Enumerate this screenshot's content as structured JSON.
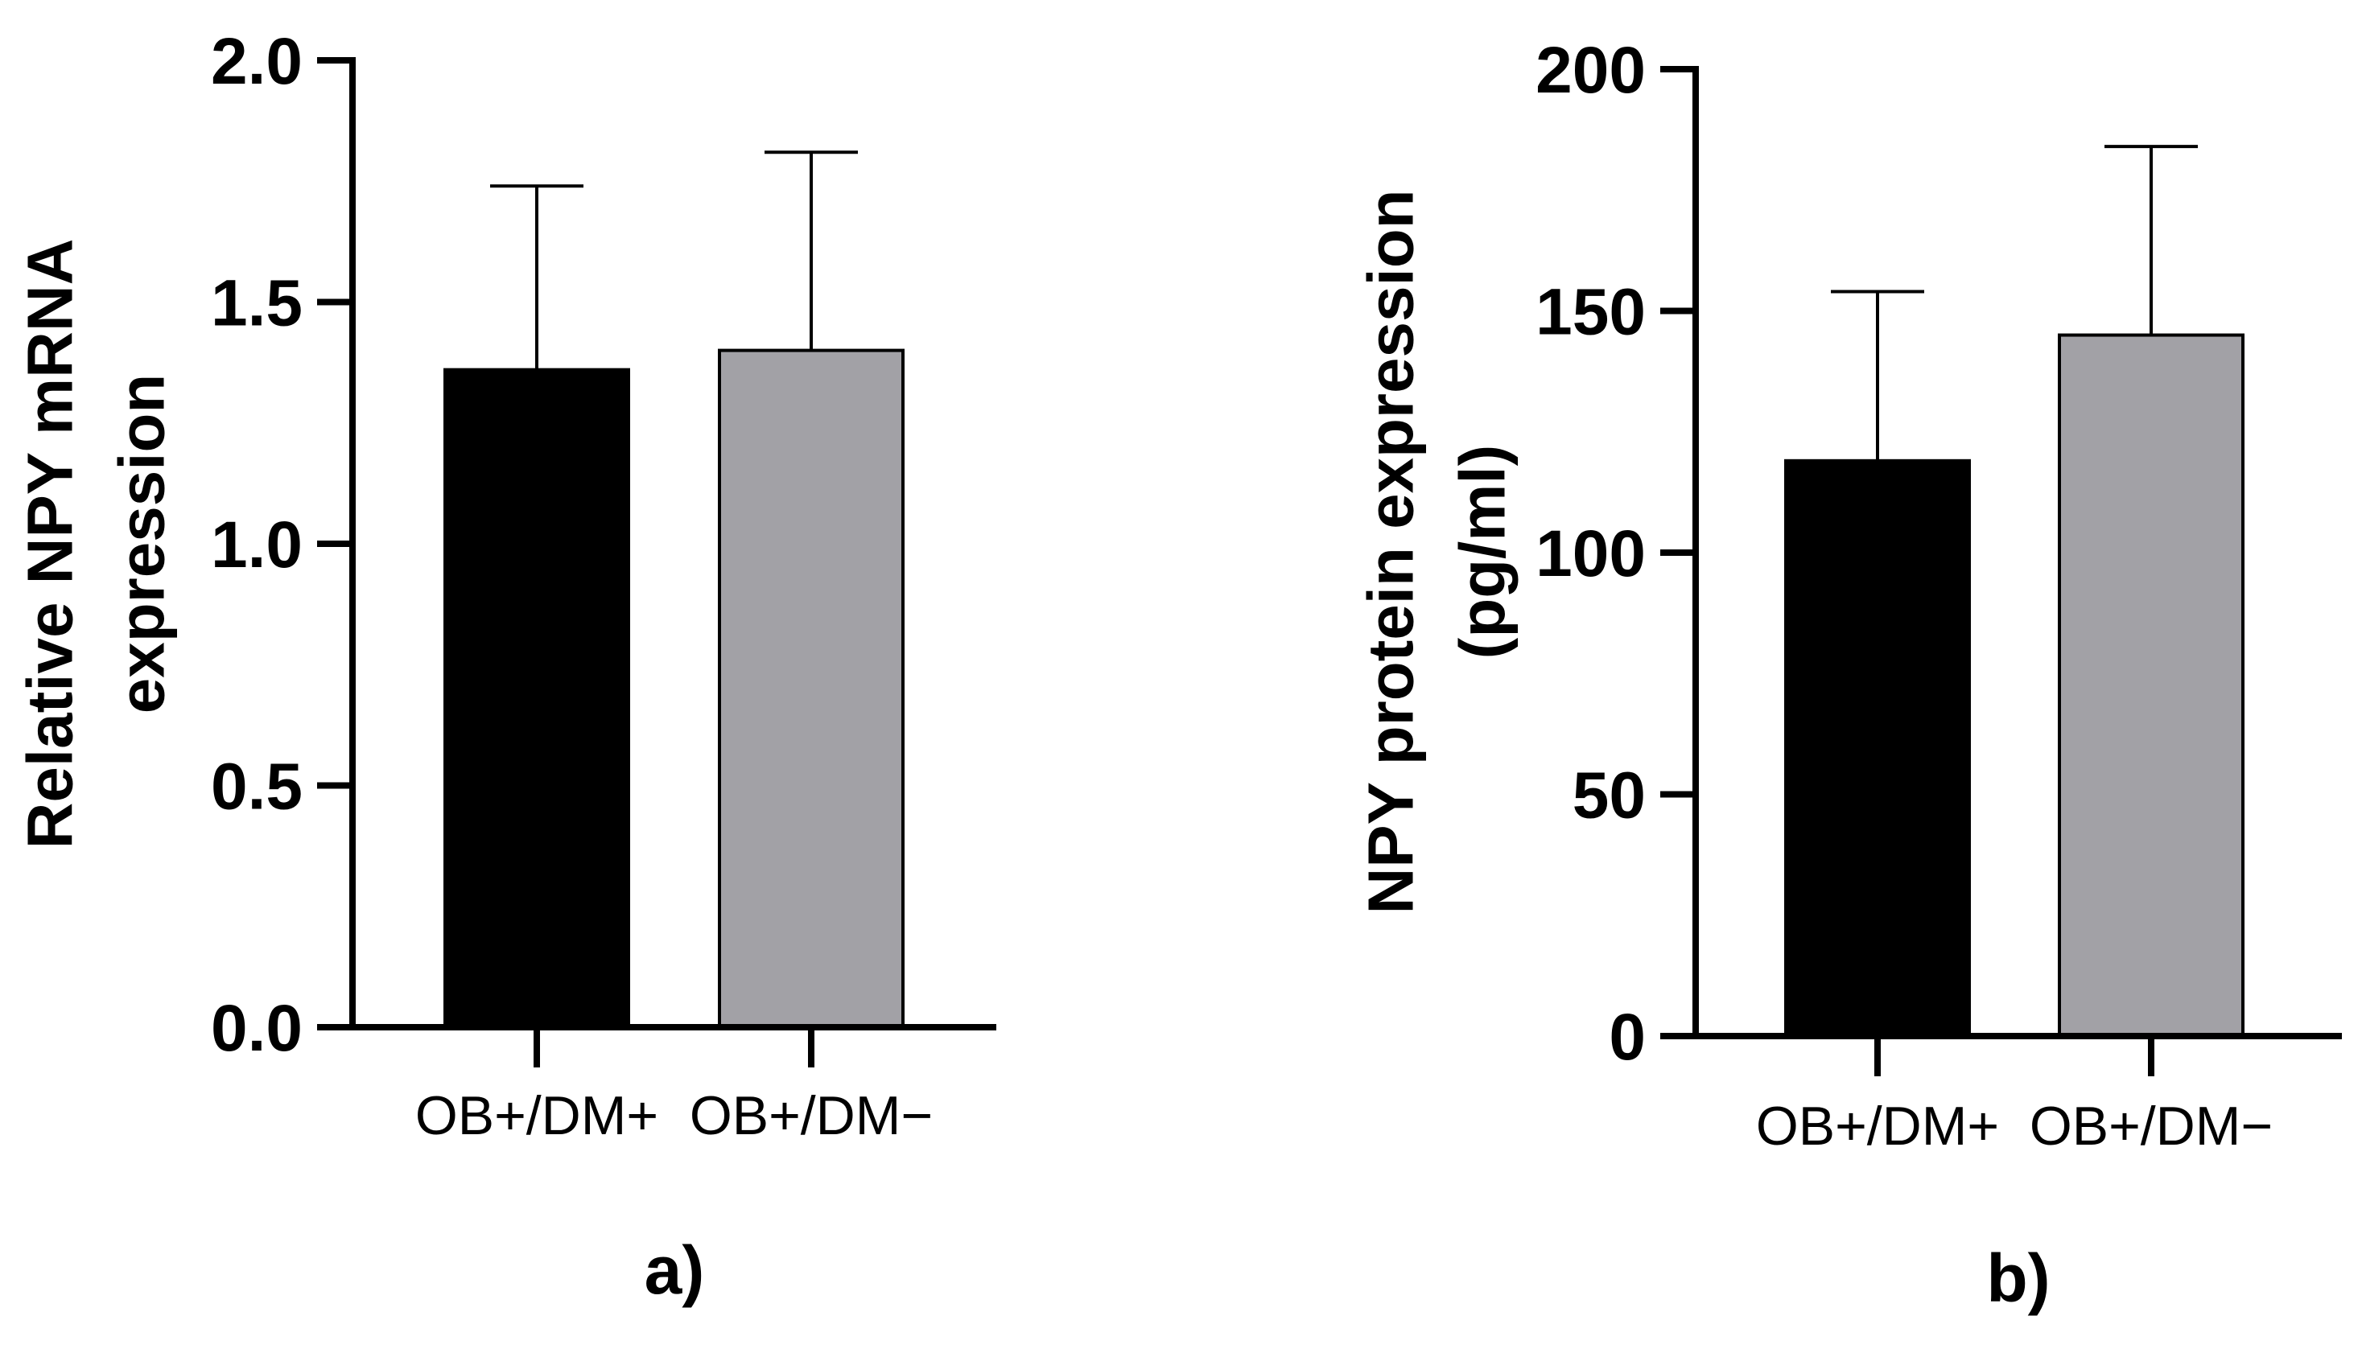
{
  "chart_data": [
    {
      "type": "bar",
      "panel_label": "a)",
      "title": "",
      "xlabel": "",
      "ylabel_lines": [
        "Relative NPY mRNA",
        "expression"
      ],
      "ylim": [
        0,
        2.0
      ],
      "yticks": [
        "0.0",
        "0.5",
        "1.0",
        "1.5",
        "2.0"
      ],
      "ytick_values": [
        0,
        0.5,
        1.0,
        1.5,
        2.0
      ],
      "categories": [
        "OB+/DM+",
        "OB+/DM−"
      ],
      "values": [
        1.36,
        1.4
      ],
      "errors": [
        0.38,
        0.41
      ],
      "colors": [
        "#000000",
        "#a2a1a6"
      ]
    },
    {
      "type": "bar",
      "panel_label": "b)",
      "title": "",
      "xlabel": "",
      "ylabel_lines": [
        "NPY protein expression",
        "(pg/ml)"
      ],
      "ylim": [
        0,
        200
      ],
      "yticks": [
        "0",
        "50",
        "100",
        "150",
        "200"
      ],
      "ytick_values": [
        0,
        50,
        100,
        150,
        200
      ],
      "categories": [
        "OB+/DM+",
        "OB+/DM−"
      ],
      "values": [
        119,
        145
      ],
      "errors": [
        35,
        39
      ],
      "colors": [
        "#000000",
        "#a2a1a6"
      ]
    }
  ]
}
